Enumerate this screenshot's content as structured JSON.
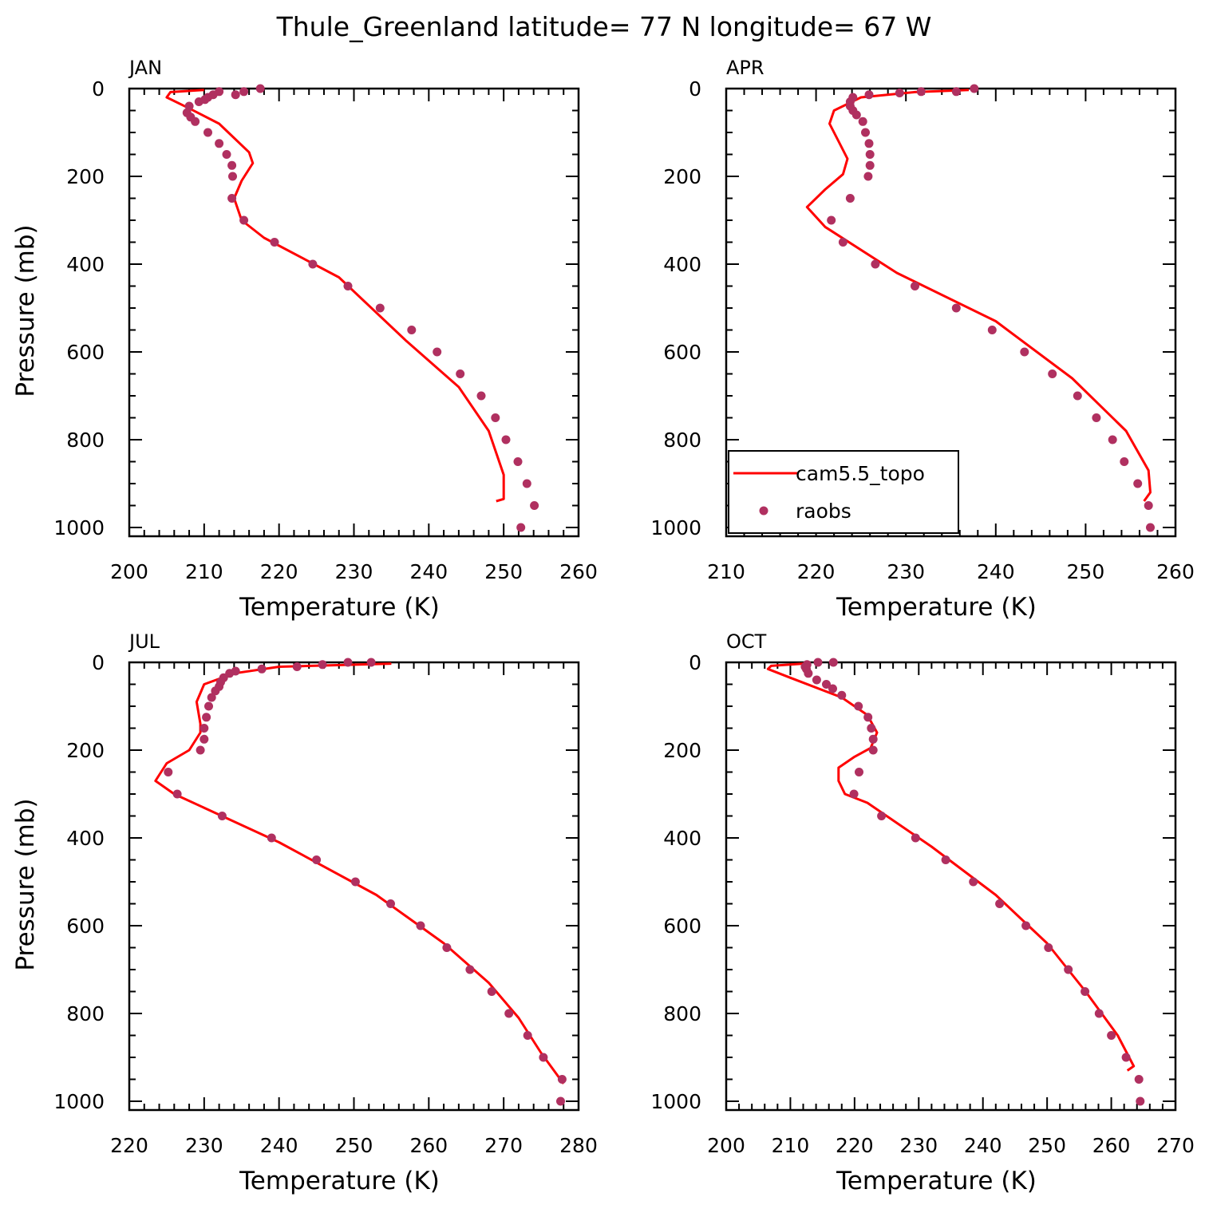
{
  "title": "Thule_Greenland  latitude= 77 N longitude= 67 W",
  "colors": {
    "model": "#ff0000",
    "obs": "#b03060",
    "axes": "#000000"
  },
  "legend": {
    "model_label": "cam5.5_topo",
    "obs_label": "raobs",
    "placement": "lower-left of APR panel"
  },
  "chart_data": [
    {
      "type": "line",
      "panel": "JAN",
      "xlabel": "Temperature (K)",
      "ylabel": "Pressure (mb)",
      "xlim": [
        200,
        260
      ],
      "ylim": [
        1000,
        0
      ],
      "y_inverted": true,
      "xticks": [
        200,
        210,
        220,
        230,
        240,
        250,
        260
      ],
      "yticks": [
        0,
        200,
        400,
        600,
        800,
        1000
      ],
      "series": [
        {
          "name": "cam5.5_topo",
          "kind": "line",
          "points": [
            [
              210,
              3
            ],
            [
              205.5,
              8
            ],
            [
              205,
              20
            ],
            [
              208,
              45
            ],
            [
              212,
              80
            ],
            [
              216,
              145
            ],
            [
              216.5,
              170
            ],
            [
              215,
              210
            ],
            [
              214,
              250
            ],
            [
              215,
              300
            ],
            [
              218,
              340
            ],
            [
              228,
              430
            ],
            [
              237,
              575
            ],
            [
              244,
              680
            ],
            [
              248,
              780
            ],
            [
              250,
              880
            ],
            [
              250,
              935
            ],
            [
              249,
              940
            ]
          ]
        },
        {
          "name": "raobs",
          "kind": "scatter",
          "points": [
            [
              217.5,
              0
            ],
            [
              215.3,
              7
            ],
            [
              214.2,
              14
            ],
            [
              212.0,
              7
            ],
            [
              211.2,
              14
            ],
            [
              210.5,
              20
            ],
            [
              210.1,
              25
            ],
            [
              209.3,
              30
            ],
            [
              208.0,
              40
            ],
            [
              207.7,
              55
            ],
            [
              208.2,
              65
            ],
            [
              208.8,
              75
            ],
            [
              210.5,
              100
            ],
            [
              212.0,
              125
            ],
            [
              213.0,
              150
            ],
            [
              213.7,
              175
            ],
            [
              213.8,
              200
            ],
            [
              213.7,
              250
            ],
            [
              215.3,
              300
            ],
            [
              219.4,
              350
            ],
            [
              224.5,
              400
            ],
            [
              229.2,
              450
            ],
            [
              233.5,
              500
            ],
            [
              237.7,
              550
            ],
            [
              241.1,
              600
            ],
            [
              244.2,
              650
            ],
            [
              247.0,
              700
            ],
            [
              248.9,
              750
            ],
            [
              250.3,
              800
            ],
            [
              251.9,
              850
            ],
            [
              253.1,
              900
            ],
            [
              254.1,
              950
            ],
            [
              252.3,
              1000
            ]
          ]
        }
      ]
    },
    {
      "type": "line",
      "panel": "APR",
      "xlabel": "Temperature (K)",
      "ylabel": "",
      "xlim": [
        210,
        260
      ],
      "ylim": [
        1000,
        0
      ],
      "y_inverted": true,
      "xticks": [
        210,
        220,
        230,
        240,
        250,
        260
      ],
      "yticks": [
        0,
        200,
        400,
        600,
        800,
        1000
      ],
      "series": [
        {
          "name": "cam5.5_topo",
          "kind": "line",
          "points": [
            [
              237,
              3
            ],
            [
              231,
              8
            ],
            [
              225,
              20
            ],
            [
              222,
              50
            ],
            [
              221.5,
              80
            ],
            [
              222.5,
              120
            ],
            [
              223.5,
              160
            ],
            [
              223,
              195
            ],
            [
              221,
              230
            ],
            [
              219,
              270
            ],
            [
              221,
              315
            ],
            [
              229,
              420
            ],
            [
              240,
              530
            ],
            [
              248.5,
              660
            ],
            [
              254.5,
              780
            ],
            [
              257,
              870
            ],
            [
              257.2,
              920
            ],
            [
              256.5,
              940
            ]
          ]
        },
        {
          "name": "raobs",
          "kind": "scatter",
          "points": [
            [
              237.6,
              0
            ],
            [
              235.6,
              7
            ],
            [
              231.7,
              7
            ],
            [
              229.3,
              10
            ],
            [
              225.9,
              14
            ],
            [
              224.1,
              20
            ],
            [
              223.8,
              30
            ],
            [
              223.8,
              40
            ],
            [
              224.1,
              50
            ],
            [
              224.5,
              60
            ],
            [
              225.2,
              75
            ],
            [
              225.5,
              100
            ],
            [
              225.9,
              125
            ],
            [
              226.0,
              150
            ],
            [
              226.0,
              175
            ],
            [
              225.8,
              200
            ],
            [
              223.8,
              250
            ],
            [
              221.7,
              300
            ],
            [
              223.0,
              350
            ],
            [
              226.6,
              400
            ],
            [
              231.0,
              450
            ],
            [
              235.6,
              500
            ],
            [
              239.6,
              550
            ],
            [
              243.2,
              600
            ],
            [
              246.3,
              650
            ],
            [
              249.1,
              700
            ],
            [
              251.2,
              750
            ],
            [
              253.0,
              800
            ],
            [
              254.3,
              850
            ],
            [
              255.8,
              900
            ],
            [
              257.0,
              950
            ],
            [
              257.2,
              1000
            ]
          ]
        }
      ]
    },
    {
      "type": "line",
      "panel": "JUL",
      "xlabel": "Temperature (K)",
      "ylabel": "Pressure (mb)",
      "xlim": [
        220,
        280
      ],
      "ylim": [
        1000,
        0
      ],
      "y_inverted": true,
      "xticks": [
        220,
        230,
        240,
        250,
        260,
        270,
        280
      ],
      "yticks": [
        0,
        200,
        400,
        600,
        800,
        1000
      ],
      "series": [
        {
          "name": "cam5.5_topo",
          "kind": "line",
          "points": [
            [
              255,
              3
            ],
            [
              240,
              10
            ],
            [
              234,
              25
            ],
            [
              230,
              50
            ],
            [
              229,
              90
            ],
            [
              229.5,
              140
            ],
            [
              229.5,
              160
            ],
            [
              228,
              200
            ],
            [
              225,
              230
            ],
            [
              223.5,
              270
            ],
            [
              226,
              300
            ],
            [
              240,
              410
            ],
            [
              253,
              530
            ],
            [
              262,
              640
            ],
            [
              268,
              730
            ],
            [
              272,
              810
            ],
            [
              275,
              890
            ],
            [
              278,
              960
            ]
          ]
        },
        {
          "name": "raobs",
          "kind": "scatter",
          "points": [
            [
              252.3,
              0
            ],
            [
              249.2,
              0
            ],
            [
              245.8,
              5
            ],
            [
              242.4,
              10
            ],
            [
              237.7,
              15
            ],
            [
              234.2,
              20
            ],
            [
              233.4,
              25
            ],
            [
              232.6,
              35
            ],
            [
              232.2,
              45
            ],
            [
              232.0,
              55
            ],
            [
              231.5,
              65
            ],
            [
              231.0,
              80
            ],
            [
              230.6,
              100
            ],
            [
              230.3,
              125
            ],
            [
              230.0,
              150
            ],
            [
              230.0,
              175
            ],
            [
              229.5,
              200
            ],
            [
              225.2,
              250
            ],
            [
              226.4,
              300
            ],
            [
              232.4,
              350
            ],
            [
              239.0,
              400
            ],
            [
              245.0,
              450
            ],
            [
              250.2,
              500
            ],
            [
              254.9,
              550
            ],
            [
              258.9,
              600
            ],
            [
              262.4,
              650
            ],
            [
              265.5,
              700
            ],
            [
              268.4,
              750
            ],
            [
              270.7,
              800
            ],
            [
              273.2,
              850
            ],
            [
              275.3,
              900
            ],
            [
              277.8,
              950
            ],
            [
              277.6,
              1000
            ]
          ]
        }
      ]
    },
    {
      "type": "line",
      "panel": "OCT",
      "xlabel": "Temperature (K)",
      "ylabel": "",
      "xlim": [
        200,
        270
      ],
      "ylim": [
        1000,
        0
      ],
      "y_inverted": true,
      "xticks": [
        200,
        210,
        220,
        230,
        240,
        250,
        260,
        270
      ],
      "yticks": [
        0,
        200,
        400,
        600,
        800,
        1000
      ],
      "series": [
        {
          "name": "cam5.5_topo",
          "kind": "line",
          "points": [
            [
              212,
              3
            ],
            [
              207,
              8
            ],
            [
              206.5,
              15
            ],
            [
              210,
              35
            ],
            [
              218,
              80
            ],
            [
              222,
              120
            ],
            [
              223.5,
              160
            ],
            [
              222.5,
              195
            ],
            [
              220,
              215
            ],
            [
              217.5,
              240
            ],
            [
              217.5,
              270
            ],
            [
              218.5,
              300
            ],
            [
              222,
              320
            ],
            [
              232,
              420
            ],
            [
              242,
              530
            ],
            [
              250,
              640
            ],
            [
              256,
              750
            ],
            [
              261,
              850
            ],
            [
              263.5,
              920
            ],
            [
              262.5,
              930
            ]
          ]
        },
        {
          "name": "raobs",
          "kind": "scatter",
          "points": [
            [
              216.7,
              0
            ],
            [
              214.3,
              0
            ],
            [
              212.6,
              5
            ],
            [
              212.3,
              10
            ],
            [
              212.5,
              15
            ],
            [
              212.8,
              25
            ],
            [
              214.1,
              40
            ],
            [
              215.6,
              50
            ],
            [
              216.6,
              60
            ],
            [
              218.0,
              75
            ],
            [
              220.6,
              100
            ],
            [
              222.1,
              125
            ],
            [
              222.6,
              150
            ],
            [
              222.9,
              175
            ],
            [
              222.9,
              200
            ],
            [
              220.7,
              250
            ],
            [
              219.9,
              300
            ],
            [
              224.2,
              350
            ],
            [
              229.5,
              400
            ],
            [
              234.2,
              450
            ],
            [
              238.5,
              500
            ],
            [
              242.6,
              550
            ],
            [
              246.7,
              600
            ],
            [
              250.2,
              650
            ],
            [
              253.3,
              700
            ],
            [
              255.9,
              750
            ],
            [
              258.1,
              800
            ],
            [
              260.0,
              850
            ],
            [
              262.3,
              900
            ],
            [
              264.3,
              950
            ],
            [
              264.5,
              1000
            ]
          ]
        }
      ]
    }
  ]
}
